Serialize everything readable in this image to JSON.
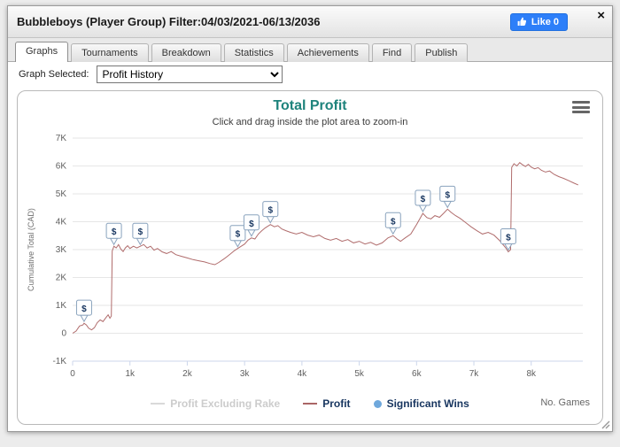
{
  "window": {
    "title": "Bubbleboys (Player Group) Filter:04/03/2021-06/13/2036",
    "like_label": "Like 0",
    "close_glyph": "×"
  },
  "tabs": [
    {
      "label": "Graphs",
      "active": true
    },
    {
      "label": "Tournaments",
      "active": false
    },
    {
      "label": "Breakdown",
      "active": false
    },
    {
      "label": "Statistics",
      "active": false
    },
    {
      "label": "Achievements",
      "active": false
    },
    {
      "label": "Find",
      "active": false
    },
    {
      "label": "Publish",
      "active": false
    }
  ],
  "graph_selector": {
    "label": "Graph Selected:",
    "selected": "Profit History"
  },
  "chart_data": {
    "type": "line",
    "title": "Total Profit",
    "subtitle": "Click and drag inside the plot area to zoom-in",
    "ylabel": "Cumulative Total (CAD)",
    "xlabel": "No. Games",
    "xlim": [
      0,
      8900
    ],
    "ylim": [
      -1000,
      7000
    ],
    "grid": true,
    "x_ticks": [
      {
        "value": 0,
        "label": "0"
      },
      {
        "value": 1000,
        "label": "1k"
      },
      {
        "value": 2000,
        "label": "2k"
      },
      {
        "value": 3000,
        "label": "3k"
      },
      {
        "value": 4000,
        "label": "4k"
      },
      {
        "value": 5000,
        "label": "5k"
      },
      {
        "value": 6000,
        "label": "6k"
      },
      {
        "value": 7000,
        "label": "7k"
      },
      {
        "value": 8000,
        "label": "8k"
      }
    ],
    "y_ticks": [
      {
        "value": -1000,
        "label": "-1K"
      },
      {
        "value": 0,
        "label": "0"
      },
      {
        "value": 1000,
        "label": "1K"
      },
      {
        "value": 2000,
        "label": "2K"
      },
      {
        "value": 3000,
        "label": "3K"
      },
      {
        "value": 4000,
        "label": "4K"
      },
      {
        "value": 5000,
        "label": "5K"
      },
      {
        "value": 6000,
        "label": "6K"
      },
      {
        "value": 7000,
        "label": "7K"
      }
    ],
    "legend": [
      {
        "label": "Profit Excluding Rake",
        "color": "#d9d9d9",
        "text_color": "#cccccc",
        "swatch": "line"
      },
      {
        "label": "Profit",
        "color": "#aa6666",
        "text_color": "#17355f",
        "swatch": "line"
      },
      {
        "label": "Significant Wins",
        "color": "#6fa8dc",
        "text_color": "#17355f",
        "swatch": "dot"
      }
    ],
    "series": [
      {
        "name": "Profit",
        "color": "#b06c6c",
        "points": [
          [
            0,
            0
          ],
          [
            60,
            80
          ],
          [
            120,
            260
          ],
          [
            180,
            300
          ],
          [
            200,
            360
          ],
          [
            240,
            300
          ],
          [
            280,
            180
          ],
          [
            330,
            120
          ],
          [
            380,
            200
          ],
          [
            430,
            380
          ],
          [
            480,
            480
          ],
          [
            530,
            420
          ],
          [
            580,
            560
          ],
          [
            620,
            660
          ],
          [
            650,
            540
          ],
          [
            675,
            620
          ],
          [
            690,
            2950
          ],
          [
            720,
            3120
          ],
          [
            760,
            3060
          ],
          [
            800,
            3180
          ],
          [
            840,
            3020
          ],
          [
            880,
            2930
          ],
          [
            920,
            3060
          ],
          [
            960,
            3140
          ],
          [
            1000,
            3040
          ],
          [
            1060,
            3120
          ],
          [
            1120,
            3060
          ],
          [
            1180,
            3120
          ],
          [
            1240,
            3180
          ],
          [
            1300,
            3060
          ],
          [
            1360,
            3120
          ],
          [
            1420,
            2980
          ],
          [
            1480,
            3040
          ],
          [
            1560,
            2920
          ],
          [
            1640,
            2860
          ],
          [
            1720,
            2930
          ],
          [
            1800,
            2820
          ],
          [
            1900,
            2760
          ],
          [
            2000,
            2700
          ],
          [
            2100,
            2640
          ],
          [
            2200,
            2600
          ],
          [
            2300,
            2560
          ],
          [
            2400,
            2500
          ],
          [
            2480,
            2460
          ],
          [
            2550,
            2540
          ],
          [
            2650,
            2680
          ],
          [
            2750,
            2840
          ],
          [
            2820,
            2960
          ],
          [
            2880,
            3040
          ],
          [
            2940,
            3120
          ],
          [
            3000,
            3200
          ],
          [
            3060,
            3340
          ],
          [
            3120,
            3420
          ],
          [
            3180,
            3380
          ],
          [
            3240,
            3560
          ],
          [
            3300,
            3680
          ],
          [
            3360,
            3780
          ],
          [
            3450,
            3900
          ],
          [
            3520,
            3820
          ],
          [
            3580,
            3860
          ],
          [
            3650,
            3740
          ],
          [
            3720,
            3680
          ],
          [
            3800,
            3620
          ],
          [
            3900,
            3560
          ],
          [
            4000,
            3620
          ],
          [
            4100,
            3520
          ],
          [
            4200,
            3460
          ],
          [
            4300,
            3520
          ],
          [
            4400,
            3400
          ],
          [
            4500,
            3340
          ],
          [
            4600,
            3400
          ],
          [
            4700,
            3300
          ],
          [
            4800,
            3360
          ],
          [
            4900,
            3240
          ],
          [
            5000,
            3300
          ],
          [
            5100,
            3200
          ],
          [
            5200,
            3260
          ],
          [
            5300,
            3160
          ],
          [
            5400,
            3240
          ],
          [
            5500,
            3420
          ],
          [
            5590,
            3500
          ],
          [
            5660,
            3380
          ],
          [
            5720,
            3300
          ],
          [
            5800,
            3420
          ],
          [
            5900,
            3560
          ],
          [
            6000,
            3900
          ],
          [
            6110,
            4300
          ],
          [
            6180,
            4150
          ],
          [
            6250,
            4100
          ],
          [
            6320,
            4220
          ],
          [
            6400,
            4160
          ],
          [
            6470,
            4300
          ],
          [
            6540,
            4450
          ],
          [
            6600,
            4340
          ],
          [
            6680,
            4220
          ],
          [
            6760,
            4120
          ],
          [
            6850,
            3980
          ],
          [
            6950,
            3820
          ],
          [
            7050,
            3680
          ],
          [
            7150,
            3560
          ],
          [
            7250,
            3620
          ],
          [
            7350,
            3520
          ],
          [
            7450,
            3320
          ],
          [
            7550,
            3080
          ],
          [
            7600,
            2920
          ],
          [
            7640,
            3000
          ],
          [
            7660,
            5950
          ],
          [
            7700,
            6080
          ],
          [
            7750,
            6000
          ],
          [
            7800,
            6120
          ],
          [
            7850,
            6040
          ],
          [
            7900,
            5980
          ],
          [
            7950,
            6060
          ],
          [
            8000,
            5960
          ],
          [
            8060,
            5900
          ],
          [
            8120,
            5940
          ],
          [
            8180,
            5840
          ],
          [
            8250,
            5780
          ],
          [
            8320,
            5820
          ],
          [
            8400,
            5700
          ],
          [
            8480,
            5620
          ],
          [
            8560,
            5560
          ],
          [
            8650,
            5480
          ],
          [
            8750,
            5380
          ],
          [
            8820,
            5320
          ]
        ]
      }
    ],
    "significant_wins": [
      [
        200,
        360
      ],
      [
        720,
        3120
      ],
      [
        1180,
        3120
      ],
      [
        2880,
        3040
      ],
      [
        3120,
        3420
      ],
      [
        3450,
        3900
      ],
      [
        5590,
        3500
      ],
      [
        6110,
        4300
      ],
      [
        6540,
        4450
      ],
      [
        7600,
        2920
      ]
    ]
  }
}
